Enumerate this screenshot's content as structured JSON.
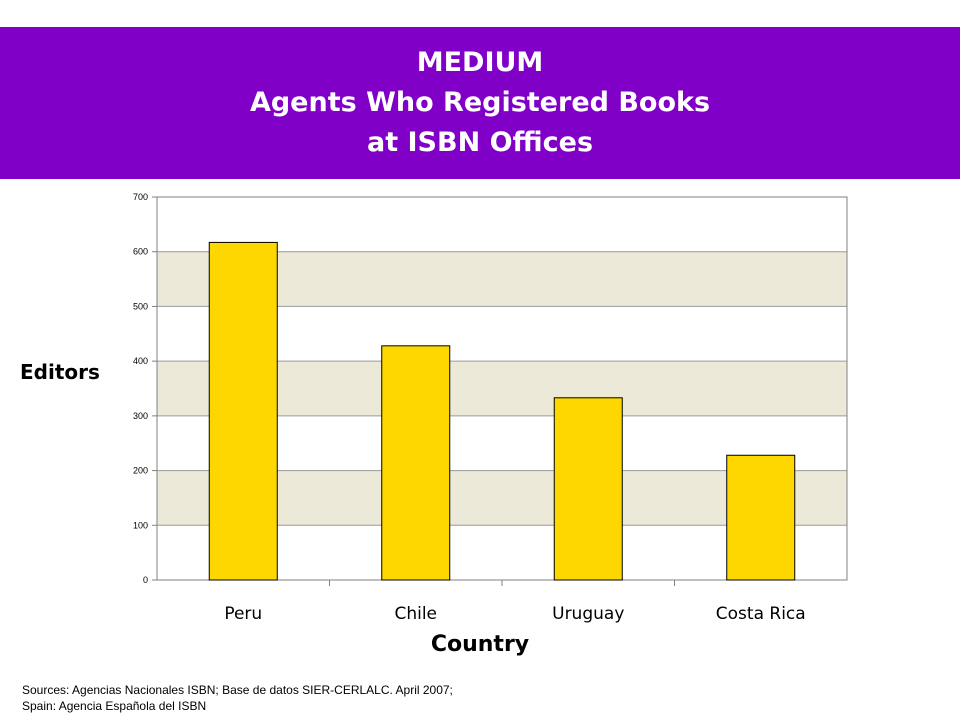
{
  "header": {
    "line1": "MEDIUM",
    "line2": "Agents Who Registered Books",
    "line3": "at ISBN Offices"
  },
  "chart_data": {
    "type": "bar",
    "title": "MEDIUM Agents Who Registered Books at ISBN Offices",
    "xlabel": "Country",
    "ylabel": "Editors",
    "categories": [
      "Peru",
      "Chile",
      "Uruguay",
      "Costa Rica"
    ],
    "values": [
      617,
      428,
      333,
      228
    ],
    "ylim": [
      0,
      700
    ],
    "yticks": [
      0,
      100,
      200,
      300,
      400,
      500,
      600,
      700
    ],
    "grid": true,
    "legend": "none",
    "colors": {
      "bar": "#ffd700",
      "plot_band": "#ece9d8",
      "banner": "#8000c8"
    }
  },
  "footer": {
    "line1": "Sources: Agencias Nacionales ISBN; Base de datos SIER-CERLALC. April 2007;",
    "line2": "Spain: Agencia Española del ISBN"
  }
}
